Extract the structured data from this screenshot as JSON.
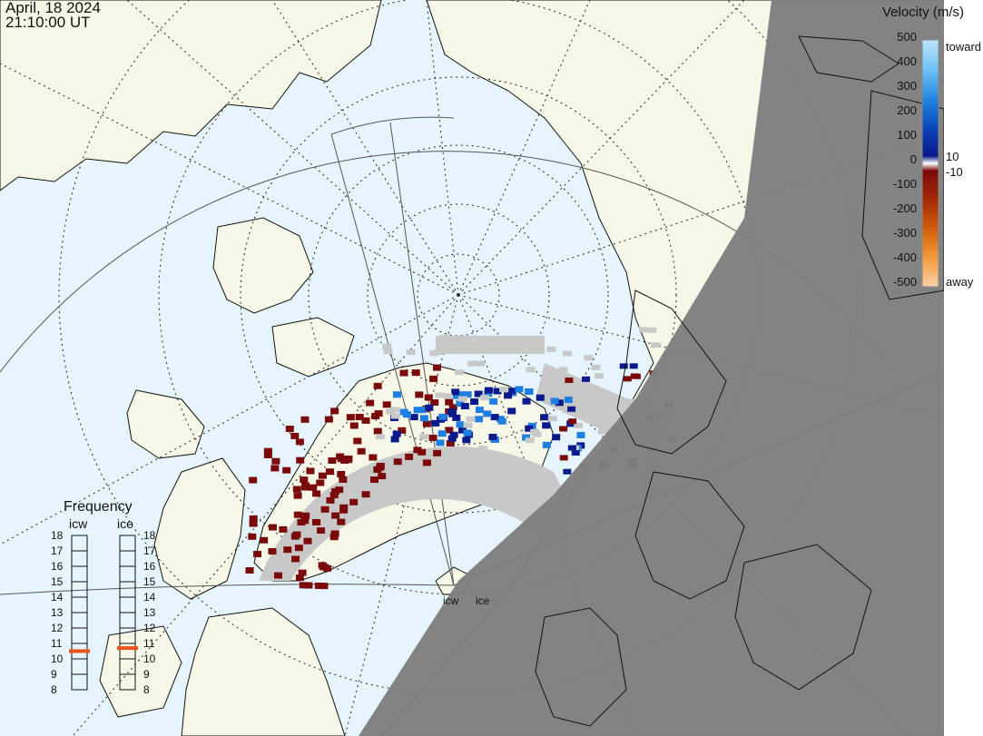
{
  "header": {
    "date": "April, 18 2024",
    "time": "21:10:00 UT"
  },
  "colorbar": {
    "title": "Velocity (m/s)",
    "ticks": [
      "500",
      "400",
      "300",
      "200",
      "100",
      "0",
      "-100",
      "-200",
      "-300",
      "-400",
      "-500"
    ],
    "label_pos": "10",
    "label_neg": "-10",
    "label_toward": "toward",
    "label_away": "away",
    "colors": {
      "toward_light": "#bde4fb",
      "toward_mid": "#1e7fe0",
      "toward_dark": "#0a1a8a",
      "zero": "#ffffff",
      "away_dark": "#7a0a0a",
      "away_mid": "#d4600e",
      "away_light": "#fbd0a8",
      "ground_scatter": "#c8c8c8"
    }
  },
  "frequency": {
    "title": "Frequency",
    "radars": [
      {
        "name": "icw",
        "value": 10.5
      },
      {
        "name": "ice",
        "value": 10.7
      }
    ],
    "scale": [
      "18",
      "17",
      "16",
      "15",
      "14",
      "13",
      "12",
      "11",
      "10",
      "9",
      "8"
    ],
    "marker_color": "#e8531a"
  },
  "radar_sites": {
    "site_1": "icw",
    "site_2": "ice"
  },
  "map_colors": {
    "ocean": "#e6f5fd",
    "land": "#f7f7e7",
    "night": "#7f7f7f",
    "coast": "#111111",
    "grid": "#222222"
  }
}
